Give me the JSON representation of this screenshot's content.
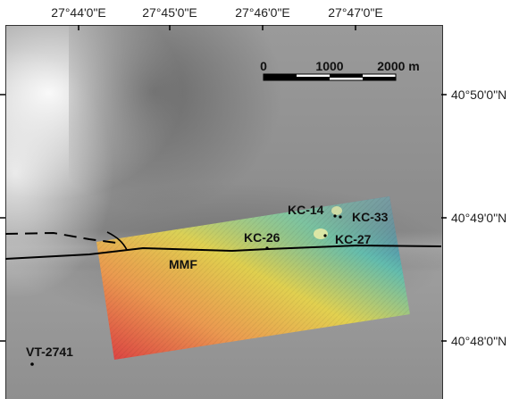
{
  "longitude_labels": [
    "27°44'0\"E",
    "27°45'0\"E",
    "27°46'0\"E",
    "27°47'0\"E"
  ],
  "latitude_labels": [
    "40°50'0\"N",
    "40°49'0\"N",
    "40°48'0\"N"
  ],
  "scale_bar": {
    "tick_labels": [
      "0",
      "1000",
      "2000 m"
    ]
  },
  "fault_label": "MMF",
  "sites": [
    {
      "id": "KC-14"
    },
    {
      "id": "KC-33"
    },
    {
      "id": "KC-26"
    },
    {
      "id": "KC-27"
    },
    {
      "id": "VT-2741"
    }
  ],
  "colors": {
    "dem_low": "#e0343a",
    "dem_mid_low": "#f29a4a",
    "dem_mid": "#e8d64a",
    "dem_mid_high": "#5fc0b0",
    "dem_high": "#2f3fa8",
    "fault_line": "#000000"
  }
}
